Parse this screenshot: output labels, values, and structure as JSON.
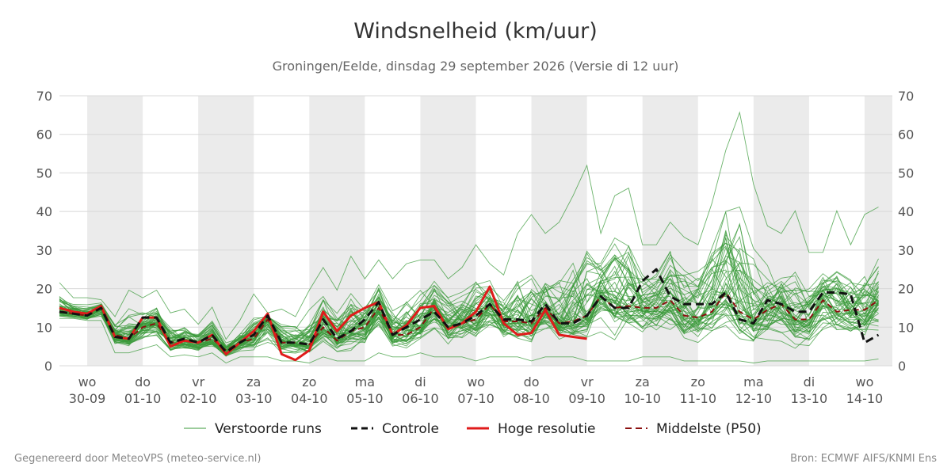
{
  "header": {
    "title": "Windsnelheid (km/uur)",
    "subtitle": "Groningen/Eelde, dinsdag 29 september 2026 (Versie di 12 uur)"
  },
  "footer": {
    "left": "Gegenereerd door MeteoVPS (meteo-service.nl)",
    "right": "Bron: ECMWF AIFS/KNMI Ens"
  },
  "colors": {
    "ensemble": "#3a9a3a",
    "control": "#111111",
    "high_resolution": "#e01b1b",
    "median": "#8b1010",
    "weekend_shade": "#ebebeb",
    "grid": "#d8d8d8"
  },
  "chart_data": {
    "type": "line",
    "title": "Windsnelheid (km/uur)",
    "subtitle": "Groningen/Eelde, dinsdag 29 september 2026 (Versie di 12 uur)",
    "xlabel": "",
    "ylabel": "",
    "ylim": [
      0,
      70
    ],
    "yticks": [
      0,
      10,
      20,
      30,
      40,
      50,
      60,
      70
    ],
    "y_axis_both_sides": true,
    "grid": true,
    "legend_position": "bottom",
    "x_start": "2026-09-29T12:00",
    "x_end": "2026-10-14T12:00",
    "x_step_hours": 6,
    "xticks": [
      {
        "day": "wo",
        "date": "30-09",
        "at": "2026-09-30T00:00"
      },
      {
        "day": "do",
        "date": "01-10",
        "at": "2026-10-01T00:00"
      },
      {
        "day": "vr",
        "date": "02-10",
        "at": "2026-10-02T00:00"
      },
      {
        "day": "za",
        "date": "03-10",
        "at": "2026-10-03T00:00"
      },
      {
        "day": "zo",
        "date": "04-10",
        "at": "2026-10-04T00:00"
      },
      {
        "day": "ma",
        "date": "05-10",
        "at": "2026-10-05T00:00"
      },
      {
        "day": "di",
        "date": "06-10",
        "at": "2026-10-06T00:00"
      },
      {
        "day": "wo",
        "date": "07-10",
        "at": "2026-10-07T00:00"
      },
      {
        "day": "do",
        "date": "08-10",
        "at": "2026-10-08T00:00"
      },
      {
        "day": "vr",
        "date": "09-10",
        "at": "2026-10-09T00:00"
      },
      {
        "day": "za",
        "date": "10-10",
        "at": "2026-10-10T00:00"
      },
      {
        "day": "zo",
        "date": "11-10",
        "at": "2026-10-11T00:00"
      },
      {
        "day": "ma",
        "date": "12-10",
        "at": "2026-10-12T00:00"
      },
      {
        "day": "di",
        "date": "13-10",
        "at": "2026-10-13T00:00"
      },
      {
        "day": "wo",
        "date": "14-10",
        "at": "2026-10-14T00:00"
      }
    ],
    "shaded_periods": [
      [
        "2026-09-30T00:00",
        "2026-10-01T00:00"
      ],
      [
        "2026-10-02T00:00",
        "2026-10-03T00:00"
      ],
      [
        "2026-10-04T00:00",
        "2026-10-05T00:00"
      ],
      [
        "2026-10-06T00:00",
        "2026-10-07T00:00"
      ],
      [
        "2026-10-08T00:00",
        "2026-10-09T00:00"
      ],
      [
        "2026-10-10T00:00",
        "2026-10-11T00:00"
      ],
      [
        "2026-10-12T00:00",
        "2026-10-13T00:00"
      ],
      [
        "2026-10-14T00:00",
        "2026-10-14T12:00"
      ]
    ],
    "series": [
      {
        "name": "Controle",
        "style": "dashed",
        "color": "#111111",
        "values": [
          14,
          13.5,
          13,
          15,
          7.5,
          7,
          12.5,
          12.5,
          6,
          7,
          6,
          8,
          3.5,
          6,
          8,
          13,
          6,
          6,
          5.5,
          12,
          7,
          9,
          12,
          16.5,
          8,
          10,
          12,
          14,
          10,
          11,
          13,
          16,
          12,
          12,
          11.5,
          16,
          11,
          11,
          13,
          18,
          15,
          15,
          22,
          25,
          18,
          16,
          16,
          16,
          19,
          12,
          11,
          17,
          16,
          14,
          14,
          19,
          19,
          18.5,
          6,
          8
        ]
      },
      {
        "name": "Hoge resolutie",
        "style": "solid",
        "color": "#e01b1b",
        "values": [
          15,
          14,
          13.5,
          15.5,
          7.5,
          7,
          12.5,
          12.5,
          5,
          6.5,
          6,
          8,
          3,
          6,
          9,
          13.5,
          3,
          1.5,
          4,
          14,
          9,
          13,
          15,
          16.5,
          8,
          10.5,
          15,
          15.5,
          9.5,
          11,
          14,
          20.5,
          11,
          8,
          8.5,
          14.5,
          8,
          7.5,
          7
        ]
      },
      {
        "name": "Middelste (P50)",
        "style": "dashed",
        "color": "#8b1010",
        "values": [
          14,
          13.5,
          13,
          15,
          8,
          7,
          10,
          11,
          6,
          6.5,
          6,
          7,
          4,
          6,
          7,
          12,
          6,
          6,
          5.5,
          10,
          6.5,
          9,
          10,
          15,
          8,
          8,
          10,
          15,
          10,
          11,
          12,
          16,
          11.5,
          11.5,
          11,
          15,
          11,
          11.5,
          13,
          18,
          15,
          15.5,
          15,
          15,
          17,
          13,
          12.5,
          14,
          19,
          14,
          12,
          14.5,
          16,
          12,
          12,
          17,
          14,
          14.5,
          14.5,
          17
        ]
      }
    ],
    "ensemble_members": {
      "name": "Verstoorde runs",
      "count": 50,
      "color": "#3a9a3a",
      "min": [
        11.5,
        11.5,
        11,
        11,
        3,
        3,
        4,
        5,
        2,
        2.5,
        2,
        3,
        0.5,
        2,
        2,
        2,
        1,
        1,
        0.5,
        2,
        1,
        1,
        1,
        3,
        2,
        2,
        3,
        2,
        2,
        2,
        1,
        2,
        2,
        2,
        1,
        2,
        2,
        2,
        1,
        1,
        1,
        1,
        2,
        2,
        2,
        1,
        1,
        1,
        1,
        1,
        0.5,
        1,
        1,
        1,
        1,
        1,
        1,
        1,
        1,
        1.5
      ],
      "p50": [
        14,
        13.5,
        13,
        15,
        8,
        7,
        10,
        11,
        6,
        6.5,
        6,
        7,
        4,
        6,
        7,
        12,
        6,
        6,
        5.5,
        10,
        6.5,
        9,
        10,
        15,
        8,
        8,
        10,
        15,
        10,
        11,
        12,
        16,
        11.5,
        11.5,
        11,
        15,
        11,
        11.5,
        13,
        18,
        15,
        15.5,
        15,
        15,
        17,
        13,
        12.5,
        14,
        19,
        14,
        12,
        14.5,
        16,
        12,
        12,
        17,
        14,
        14.5,
        14.5,
        17
      ],
      "max": [
        22,
        18,
        18,
        17.5,
        13,
        20,
        18,
        20,
        14,
        15,
        11,
        15.5,
        7,
        12,
        19,
        14,
        15,
        13,
        20,
        26,
        20,
        29,
        23,
        28,
        23,
        27,
        28,
        28,
        23,
        26,
        32,
        27,
        24,
        35,
        40,
        35,
        38,
        45,
        53,
        35,
        45,
        47,
        32,
        32,
        38,
        34,
        32,
        43,
        57,
        67,
        48,
        37,
        35,
        41,
        30,
        30,
        41,
        32,
        40,
        42
      ]
    }
  },
  "legend": {
    "items": [
      {
        "label": "Verstoorde runs",
        "style": "thin-solid",
        "color": "#3a9a3a"
      },
      {
        "label": "Controle",
        "style": "dashed",
        "color": "#111111"
      },
      {
        "label": "Hoge resolutie",
        "style": "solid",
        "color": "#e01b1b"
      },
      {
        "label": "Middelste (P50)",
        "style": "dashed",
        "color": "#8b1010"
      }
    ]
  }
}
